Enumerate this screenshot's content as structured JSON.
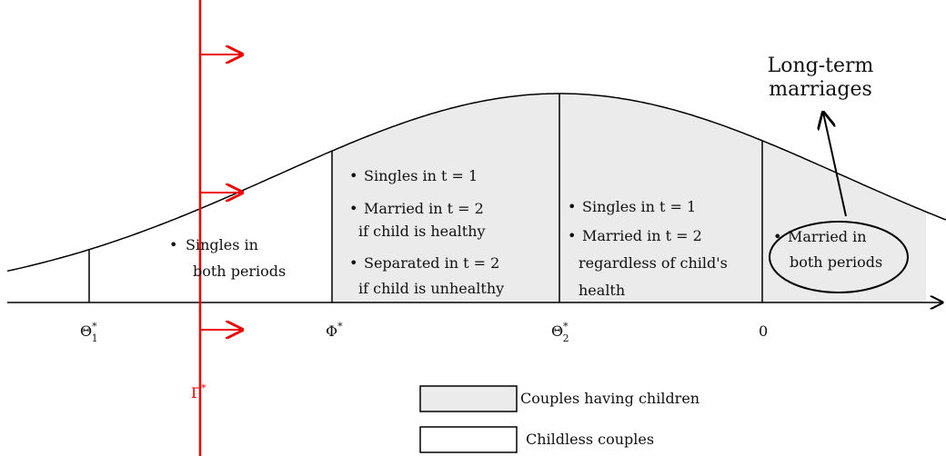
{
  "axis_labels": [
    {
      "base": "Θ",
      "sup": "*",
      "sub": "1"
    },
    {
      "base": "Φ",
      "sup": "*"
    },
    {
      "base": "Θ",
      "sup": "*",
      "sub": "2"
    },
    {
      "base": "0"
    }
  ],
  "threshold": {
    "base": "Γ",
    "sup": "*"
  },
  "regions": [
    {
      "bullets": [
        [
          "Singles in",
          "both periods"
        ]
      ]
    },
    {
      "bullets": [
        [
          "Singles in t = 1"
        ],
        [
          "Married in t = 2",
          "if child is healthy"
        ],
        [
          "Separated in t = 2",
          "if child is unhealthy"
        ]
      ]
    },
    {
      "bullets": [
        [
          "Singles in t = 1"
        ],
        [
          "Married in t = 2",
          "regardless of child's",
          "health"
        ]
      ]
    },
    {
      "bullets": [
        [
          "Married in",
          "both periods"
        ]
      ]
    }
  ],
  "annotation": [
    "Long-term",
    "marriages"
  ],
  "legend": [
    "Couples having children",
    "Childless couples"
  ]
}
